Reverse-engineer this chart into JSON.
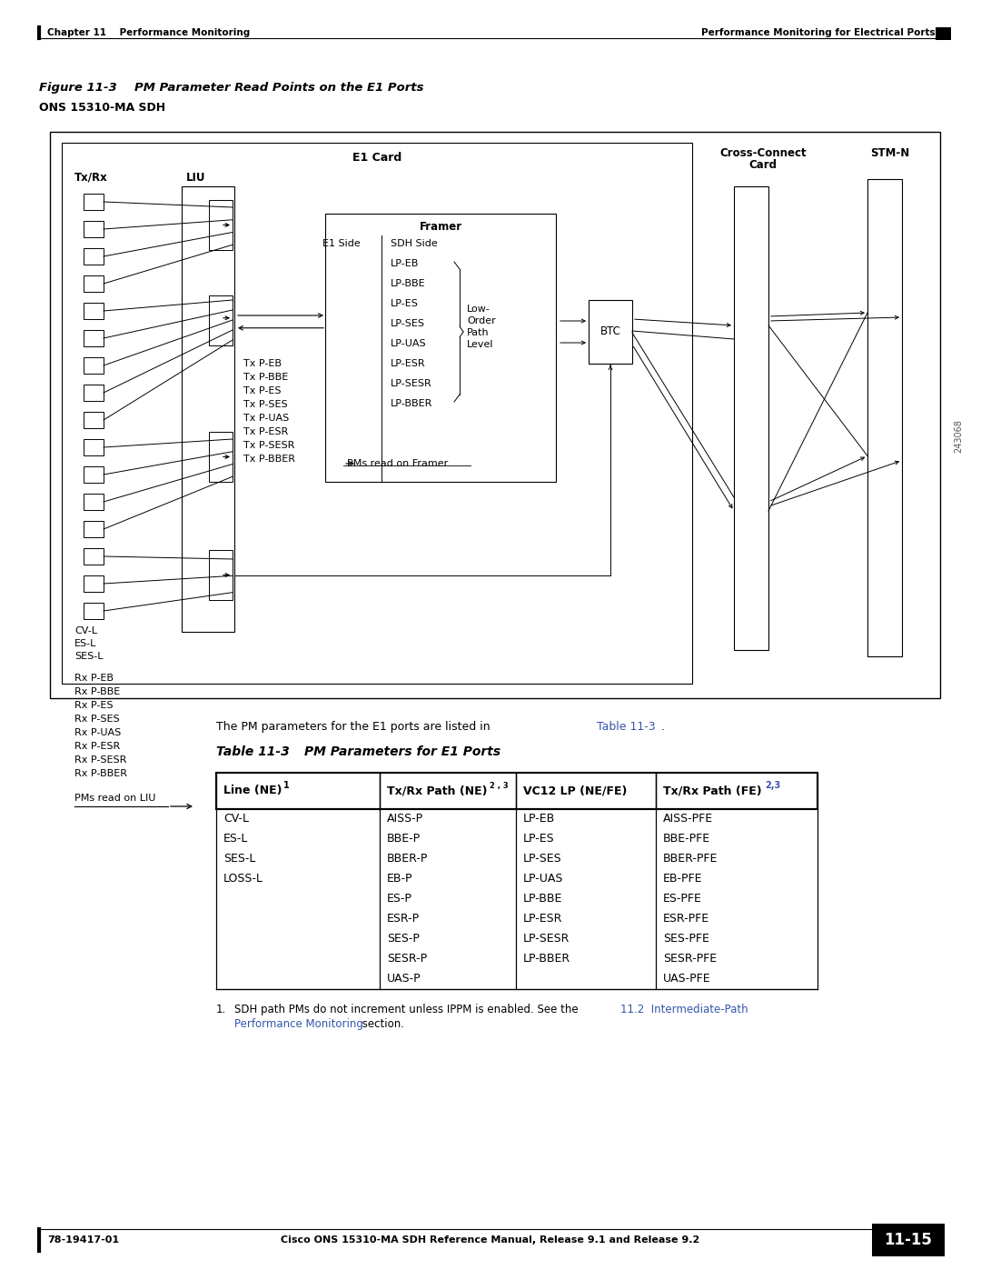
{
  "page_header_left": "Chapter 11    Performance Monitoring",
  "page_header_right": "Performance Monitoring for Electrical Ports",
  "figure_label": "Figure 11-3",
  "figure_title": "PM Parameter Read Points on the E1 Ports",
  "figure_subtitle": "ONS 15310-MA SDH",
  "table_label": "Table 11-3",
  "table_title": "PM Parameters for E1 Ports",
  "col1": [
    "CV-L",
    "ES-L",
    "SES-L",
    "LOSS-L",
    "",
    "",
    "",
    "",
    ""
  ],
  "col2": [
    "AISS-P",
    "BBE-P",
    "BBER-P",
    "EB-P",
    "ES-P",
    "ESR-P",
    "SES-P",
    "SESR-P",
    "UAS-P"
  ],
  "col3": [
    "LP-EB",
    "LP-ES",
    "LP-SES",
    "LP-UAS",
    "LP-BBE",
    "LP-ESR",
    "LP-SESR",
    "LP-BBER",
    ""
  ],
  "col4": [
    "AISS-PFE",
    "BBE-PFE",
    "BBER-PFE",
    "EB-PFE",
    "ES-PFE",
    "ESR-PFE",
    "SES-PFE",
    "SESR-PFE",
    "UAS-PFE"
  ],
  "page_footer_left": "78-19417-01",
  "page_footer_right": "Cisco ONS 15310-MA SDH Reference Manual, Release 9.1 and Release 9.2",
  "page_number": "11-15",
  "watermark": "243068",
  "sdh_items": [
    "LP-EB",
    "LP-BBE",
    "LP-ES",
    "LP-SES",
    "LP-UAS",
    "LP-ESR",
    "LP-SESR",
    "LP-BBER"
  ],
  "tx_labels": [
    "Tx P-EB",
    "Tx P-BBE",
    "Tx P-ES",
    "Tx P-SES",
    "Tx P-UAS",
    "Tx P-ESR",
    "Tx P-SESR",
    "Tx P-BBER"
  ],
  "rx_labels": [
    "Rx P-EB",
    "Rx P-BBE",
    "Rx P-ES",
    "Rx P-SES",
    "Rx P-UAS",
    "Rx P-ESR",
    "Rx P-SESR",
    "Rx P-BBER"
  ]
}
